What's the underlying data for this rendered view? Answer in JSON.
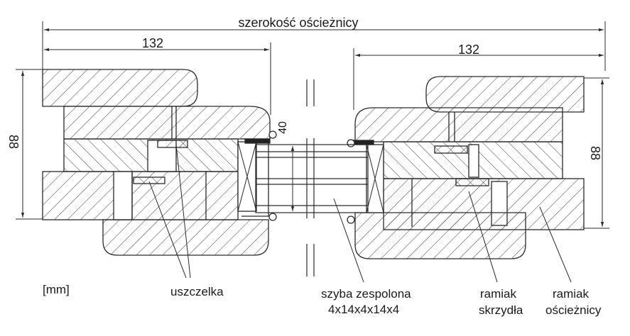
{
  "title": "szerokość ościeżnicy",
  "dims": {
    "left_width": "132",
    "right_width": "132",
    "left_height": "88",
    "right_height": "88",
    "glass_thickness": "40"
  },
  "unit_label": "[mm]",
  "labels": {
    "seal": "uszczelka",
    "glass_line1": "szyba zespolona",
    "glass_line2": "4x14x4x14x4",
    "sash_line1": "ramiak",
    "sash_line2": "skrzydła",
    "frame_line1": "ramiak",
    "frame_line2": "ościeżnicy"
  },
  "colors": {
    "line": "#2a2a2a",
    "hatch": "#4a4a4a",
    "paper": "#ffffff"
  }
}
